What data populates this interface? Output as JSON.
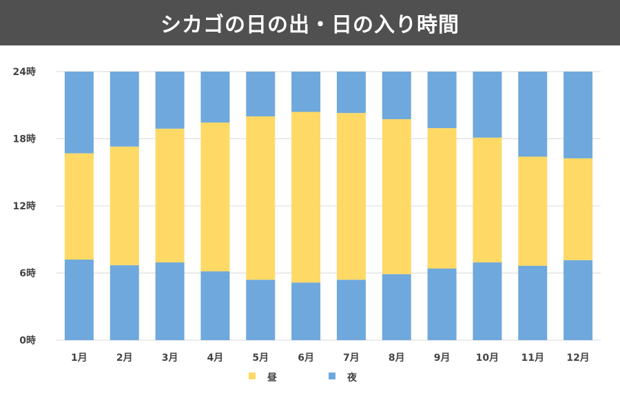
{
  "chart_data": {
    "type": "bar",
    "stacked": true,
    "title": "シカゴの日の出・日の入り時間",
    "categories": [
      "1月",
      "2月",
      "3月",
      "4月",
      "5月",
      "6月",
      "7月",
      "8月",
      "9月",
      "10月",
      "11月",
      "12月"
    ],
    "sunrise": [
      7.2,
      6.7,
      6.95,
      6.15,
      5.4,
      5.15,
      5.4,
      5.9,
      6.4,
      6.95,
      6.65,
      7.15
    ],
    "sunset": [
      16.7,
      17.3,
      18.9,
      19.45,
      20.0,
      20.4,
      20.3,
      19.75,
      18.95,
      18.1,
      16.4,
      16.25
    ],
    "y_ticks": [
      "0時",
      "6時",
      "12時",
      "18時",
      "24時"
    ],
    "ylim": [
      0,
      24
    ],
    "legend": [
      {
        "name": "昼",
        "color": "#ffd966"
      },
      {
        "name": "夜",
        "color": "#6fa8dc"
      }
    ],
    "legend_position": "bottom",
    "grid": true
  }
}
